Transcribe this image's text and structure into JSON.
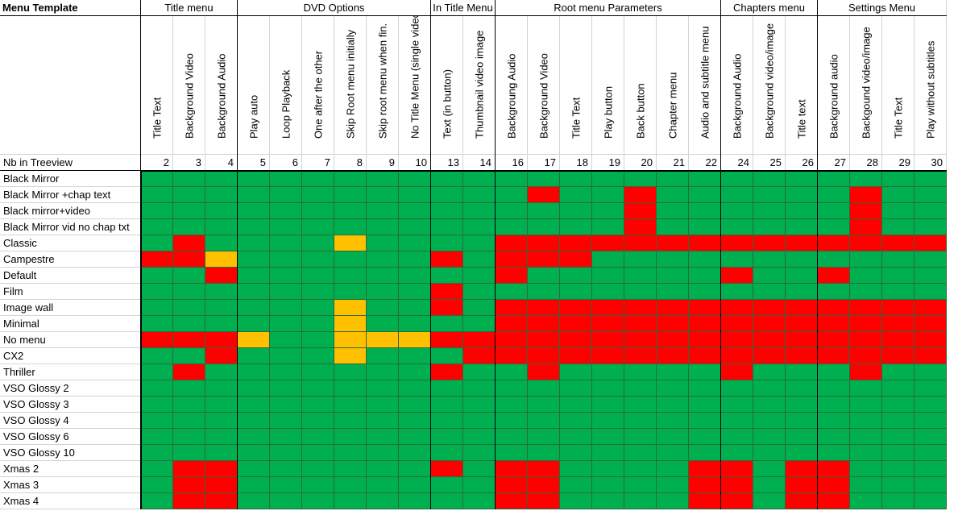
{
  "title": "Menu Template",
  "row_header_label": "Nb in Treeview",
  "groups": [
    {
      "label": "Title menu",
      "span": 3
    },
    {
      "label": "DVD Options",
      "span": 6
    },
    {
      "label": "In Title Menu",
      "span": 2
    },
    {
      "label": "Root menu Parameters",
      "span": 7
    },
    {
      "label": "Chapters menu",
      "span": 3
    },
    {
      "label": "Settings Menu",
      "span": 4
    }
  ],
  "columns": [
    {
      "label": "Title Text",
      "nb": "2"
    },
    {
      "label": "Background Video",
      "nb": "3"
    },
    {
      "label": "Background Audio",
      "nb": "4"
    },
    {
      "label": "Play auto",
      "nb": "5"
    },
    {
      "label": "Loop Playback",
      "nb": "6"
    },
    {
      "label": "One after the other",
      "nb": "7"
    },
    {
      "label": "Skip Root menu initially",
      "nb": "8"
    },
    {
      "label": "Skip root menu when fin.",
      "nb": "9"
    },
    {
      "label": "No Title Menu (single video)",
      "nb": "10"
    },
    {
      "label": "Text (in button)",
      "nb": "13"
    },
    {
      "label": "Thumbnail video image",
      "nb": "14"
    },
    {
      "label": "Backgroung Audio",
      "nb": "16"
    },
    {
      "label": "Background Video",
      "nb": "17"
    },
    {
      "label": "Title Text",
      "nb": "18"
    },
    {
      "label": "Play button",
      "nb": "19"
    },
    {
      "label": "Back button",
      "nb": "20"
    },
    {
      "label": "Chapter menu",
      "nb": "21"
    },
    {
      "label": "Audio and subtitle menu",
      "nb": "22"
    },
    {
      "label": "Background Audio",
      "nb": "24"
    },
    {
      "label": "Background video/image",
      "nb": "25"
    },
    {
      "label": "Title text",
      "nb": "26"
    },
    {
      "label": "Background audio",
      "nb": "27"
    },
    {
      "label": "Backgound video/image",
      "nb": "28"
    },
    {
      "label": "Title Text",
      "nb": "29"
    },
    {
      "label": "Play without subtitles",
      "nb": "30"
    }
  ],
  "status_colors": {
    "G": "#00b050",
    "R": "#ff0000",
    "Y": "#ffc000"
  },
  "rows": [
    {
      "name": "Black Mirror",
      "status": "GGGGGGGGGGGGGGGGGGGGGGGGG"
    },
    {
      "name": "Black Mirror +chap text",
      "status": "GGGGGGGGGGGGRGGRGGGGGGRGG"
    },
    {
      "name": "Black mirror+video",
      "status": "GGGGGGGGGGGGGGGRGGGGGGRGG"
    },
    {
      "name": "Black Mirror vid no chap txt",
      "status": "GGGGGGGGGGGGGGGRGGGGGGRGG"
    },
    {
      "name": "Classic",
      "status": "GRGGGGYGGGGRRRRRRRRRRRRRR"
    },
    {
      "name": "Campestre",
      "status": "RRYGGGGGGRGRRRGGGGGGGGGGG"
    },
    {
      "name": "Default",
      "status": "GGRGGGGGGGGRGGGGGGRGGRGGG"
    },
    {
      "name": "Film",
      "status": "GGGGGGGGGRGGGGGGGGGGGGGGG"
    },
    {
      "name": "Image wall",
      "status": "GGGGGGYGGRGRRRRRRRRRRRRRR"
    },
    {
      "name": "Minimal",
      "status": "GGGGGGYGGGGRRRRRRRRRRRRRR"
    },
    {
      "name": "No menu",
      "status": "RRRYGGYYYRRRRRRRRRRRRRRRR"
    },
    {
      "name": "CX2",
      "status": "GGRGGGYGGGRRRRRRRRRRRRRRR"
    },
    {
      "name": "Thriller",
      "status": "GRGGGGGGGRGGRGGGGGRGGGRGG"
    },
    {
      "name": "VSO Glossy 2",
      "status": "GGGGGGGGGGGGGGGGGGGGGGGGG"
    },
    {
      "name": "VSO Glossy 3",
      "status": "GGGGGGGGGGGGGGGGGGGGGGGGG"
    },
    {
      "name": "VSO Glossy 4",
      "status": "GGGGGGGGGGGGGGGGGGGGGGGGG"
    },
    {
      "name": "VSO Glossy 6",
      "status": "GGGGGGGGGGGGGGGGGGGGGGGGG"
    },
    {
      "name": "VSO Glossy 10",
      "status": "GGGGGGGGGGGGGGGGGGGGGGGGG"
    },
    {
      "name": "Xmas 2",
      "status": "GRRGGGGGGRGRRGGGGRRGRRGGG"
    },
    {
      "name": "Xmas 3",
      "status": "GRRGGGGGGGGRRGGGGRRGRRGGG"
    },
    {
      "name": "Xmas 4",
      "status": "GRRGGGGGGGGRRGGGGRRGRRGGG"
    }
  ]
}
